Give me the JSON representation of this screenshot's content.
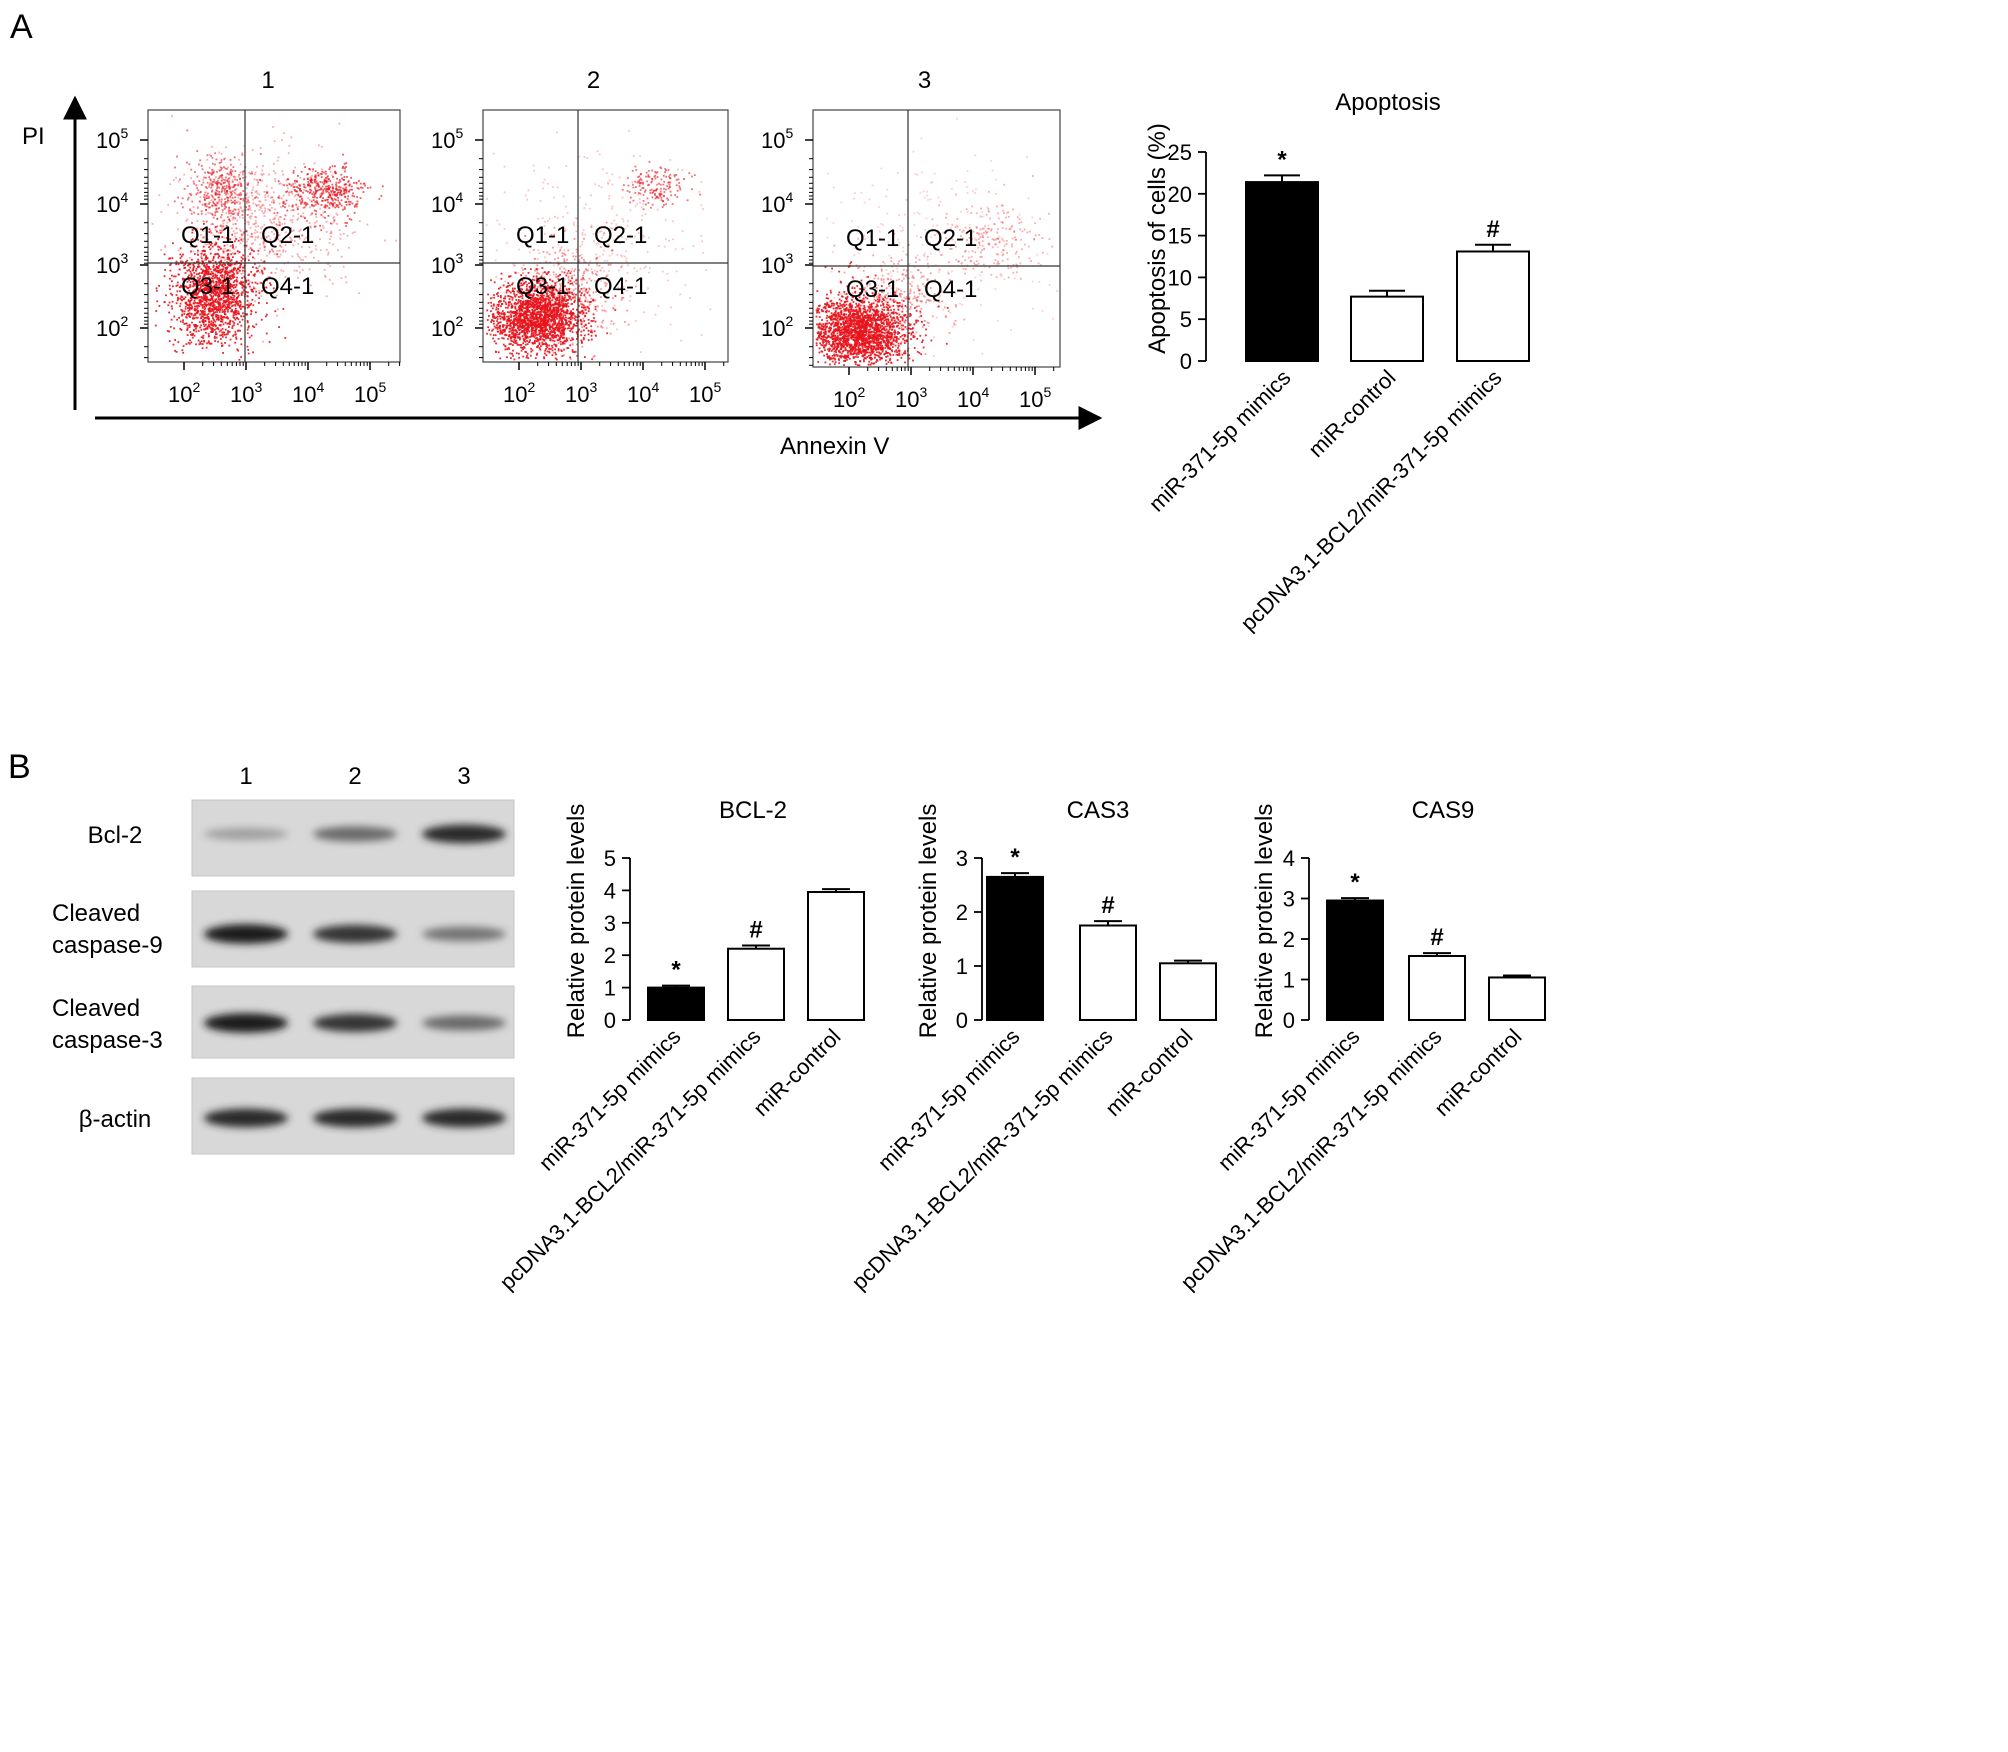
{
  "panel_a_label": "A",
  "panel_b_label": "B",
  "flow": {
    "y_axis_label": "PI",
    "x_axis_label": "Annexin V",
    "tick_labels": [
      {
        "base": "10",
        "exp": "2"
      },
      {
        "base": "10",
        "exp": "3"
      },
      {
        "base": "10",
        "exp": "4"
      },
      {
        "base": "10",
        "exp": "5"
      }
    ],
    "plots": [
      {
        "title": "1",
        "quadrants": [
          "Q1-1",
          "Q2-1",
          "Q3-1",
          "Q4-1"
        ]
      },
      {
        "title": "2",
        "quadrants": [
          "Q1-1",
          "Q2-1",
          "Q3-1",
          "Q4-1"
        ]
      },
      {
        "title": "3",
        "quadrants": [
          "Q1-1",
          "Q2-1",
          "Q3-1",
          "Q4-1"
        ]
      }
    ],
    "dot_color": "#e8141c"
  },
  "western": {
    "lane_labels": [
      "1",
      "2",
      "3"
    ],
    "row_labels": [
      [
        "Bcl-2"
      ],
      [
        "Cleaved",
        "caspase-9"
      ],
      [
        "Cleaved",
        "caspase-3"
      ],
      [
        "β-actin"
      ]
    ],
    "band_intensity": [
      [
        0.35,
        0.6,
        0.9
      ],
      [
        0.95,
        0.85,
        0.55
      ],
      [
        0.95,
        0.85,
        0.6
      ],
      [
        0.9,
        0.9,
        0.9
      ]
    ]
  },
  "chart_data": [
    {
      "type": "bar",
      "title": "Apoptosis",
      "ylabel": "Apoptosis of cells (%)",
      "xlabel": "",
      "ylim": [
        0,
        25
      ],
      "yticks": [
        0,
        5,
        10,
        15,
        20,
        25
      ],
      "categories": [
        "miR-371-5p mimics",
        "miR-control",
        "pcDNA3.1-BCL2/miR-371-5p mimics"
      ],
      "values": [
        21.4,
        7.7,
        13.1
      ],
      "errors": [
        0.8,
        0.7,
        0.8
      ],
      "fills": [
        "#000000",
        "#ffffff",
        "#ffffff"
      ],
      "annotations": [
        "*",
        "",
        "#"
      ]
    },
    {
      "type": "bar",
      "title": "BCL-2",
      "ylabel": "Relative protein levels",
      "xlabel": "",
      "ylim": [
        0,
        5
      ],
      "yticks": [
        0,
        1,
        2,
        3,
        4,
        5
      ],
      "categories": [
        "miR-371-5p mimics",
        "pcDNA3.1-BCL2/miR-371-5p mimics",
        "miR-control"
      ],
      "values": [
        1.0,
        2.2,
        3.95
      ],
      "errors": [
        0.06,
        0.1,
        0.09
      ],
      "fills": [
        "#000000",
        "#ffffff",
        "#ffffff"
      ],
      "annotations": [
        "*",
        "#",
        ""
      ]
    },
    {
      "type": "bar",
      "title": "CAS3",
      "ylabel": "Relative protein levels",
      "xlabel": "",
      "ylim": [
        0,
        3
      ],
      "yticks": [
        0,
        1,
        2,
        3
      ],
      "categories": [
        "miR-371-5p mimics",
        "pcDNA3.1-BCL2/miR-371-5p mimics",
        "miR-control"
      ],
      "values": [
        2.65,
        1.75,
        1.05
      ],
      "errors": [
        0.07,
        0.08,
        0.05
      ],
      "fills": [
        "#000000",
        "#ffffff",
        "#ffffff"
      ],
      "annotations": [
        "*",
        "#",
        ""
      ]
    },
    {
      "type": "bar",
      "title": "CAS9",
      "ylabel": "Relative protein levels",
      "xlabel": "",
      "ylim": [
        0,
        4
      ],
      "yticks": [
        0,
        1,
        2,
        3,
        4
      ],
      "categories": [
        "miR-371-5p mimics",
        "pcDNA3.1-BCL2/miR-371-5p mimics",
        "miR-control"
      ],
      "values": [
        2.95,
        1.58,
        1.05
      ],
      "errors": [
        0.06,
        0.07,
        0.05
      ],
      "fills": [
        "#000000",
        "#ffffff",
        "#ffffff"
      ],
      "annotations": [
        "*",
        "#",
        ""
      ]
    }
  ]
}
